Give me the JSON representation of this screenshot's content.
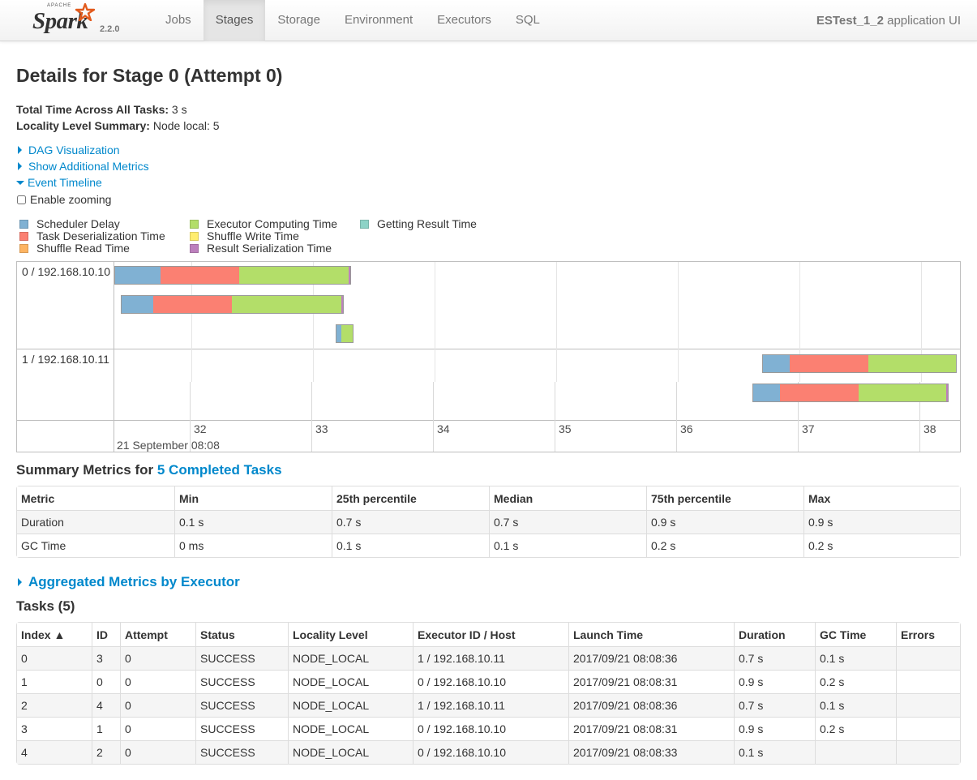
{
  "nav": {
    "logo_apache": "APACHE",
    "logo_text": "Spark",
    "version": "2.2.0",
    "tabs": [
      "Jobs",
      "Stages",
      "Storage",
      "Environment",
      "Executors",
      "SQL"
    ],
    "active_tab": "Stages",
    "app_name": "ESTest_1_2",
    "app_suffix": "application UI"
  },
  "stage": {
    "title": "Details for Stage 0 (Attempt 0)",
    "total_time_label": "Total Time Across All Tasks:",
    "total_time_value": "3 s",
    "locality_label": "Locality Level Summary:",
    "locality_value": "Node local: 5"
  },
  "toggles": {
    "dag": "DAG Visualization",
    "metrics": "Show Additional Metrics",
    "timeline": "Event Timeline",
    "zoom": "Enable zooming"
  },
  "legend": [
    {
      "label": "Scheduler Delay",
      "color": "#80b1d3"
    },
    {
      "label": "Task Deserialization Time",
      "color": "#fb8072"
    },
    {
      "label": "Shuffle Read Time",
      "color": "#fdb462"
    },
    {
      "label": "Executor Computing Time",
      "color": "#b3de69"
    },
    {
      "label": "Shuffle Write Time",
      "color": "#ffed6f"
    },
    {
      "label": "Result Serialization Time",
      "color": "#bc80bd"
    },
    {
      "label": "Getting Result Time",
      "color": "#8dd3c7"
    }
  ],
  "timeline": {
    "groups": [
      "0 / 192.168.10.10",
      "1 / 192.168.10.11"
    ],
    "axis_ticks": [
      "32",
      "33",
      "34",
      "35",
      "36",
      "37",
      "38"
    ],
    "axis_date": "21 September 08:08",
    "tasks": [
      {
        "executor": 0,
        "segments": [
          {
            "kind": 0,
            "s": 0.27
          },
          {
            "kind": 1,
            "s": 0.47
          },
          {
            "kind": 3,
            "s": 0.65
          },
          {
            "kind": 5,
            "s": 0.01
          }
        ]
      },
      {
        "executor": 0,
        "segments": [
          {
            "kind": 0,
            "s": 0.19
          },
          {
            "kind": 1,
            "s": 0.47
          },
          {
            "kind": 3,
            "s": 0.65
          },
          {
            "kind": 5,
            "s": 0.01
          }
        ]
      },
      {
        "executor": 0,
        "segments": [
          {
            "kind": 0,
            "s": 0.03
          },
          {
            "kind": 3,
            "s": 0.07
          }
        ]
      },
      {
        "executor": 1,
        "segments": [
          {
            "kind": 0,
            "s": 0.16
          },
          {
            "kind": 1,
            "s": 0.47
          },
          {
            "kind": 3,
            "s": 0.52
          }
        ]
      },
      {
        "executor": 1,
        "segments": [
          {
            "kind": 0,
            "s": 0.16
          },
          {
            "kind": 1,
            "s": 0.47
          },
          {
            "kind": 3,
            "s": 0.52
          },
          {
            "kind": 5,
            "s": 0.01
          }
        ]
      }
    ]
  },
  "summary": {
    "title_prefix": "Summary Metrics for",
    "title_link": "5 Completed Tasks",
    "headers": [
      "Metric",
      "Min",
      "25th percentile",
      "Median",
      "75th percentile",
      "Max"
    ],
    "rows": [
      [
        "Duration",
        "0.1 s",
        "0.7 s",
        "0.7 s",
        "0.9 s",
        "0.9 s"
      ],
      [
        "GC Time",
        "0 ms",
        "0.1 s",
        "0.1 s",
        "0.2 s",
        "0.2 s"
      ]
    ]
  },
  "aggregated": {
    "label": "Aggregated Metrics by Executor"
  },
  "tasks": {
    "title": "Tasks (5)",
    "headers": [
      "Index ▲",
      "ID",
      "Attempt",
      "Status",
      "Locality Level",
      "Executor ID / Host",
      "Launch Time",
      "Duration",
      "GC Time",
      "Errors"
    ],
    "rows": [
      [
        "0",
        "3",
        "0",
        "SUCCESS",
        "NODE_LOCAL",
        "1 / 192.168.10.11",
        "2017/09/21 08:08:36",
        "0.7 s",
        "0.1 s",
        ""
      ],
      [
        "1",
        "0",
        "0",
        "SUCCESS",
        "NODE_LOCAL",
        "0 / 192.168.10.10",
        "2017/09/21 08:08:31",
        "0.9 s",
        "0.2 s",
        ""
      ],
      [
        "2",
        "4",
        "0",
        "SUCCESS",
        "NODE_LOCAL",
        "1 / 192.168.10.11",
        "2017/09/21 08:08:36",
        "0.7 s",
        "0.1 s",
        ""
      ],
      [
        "3",
        "1",
        "0",
        "SUCCESS",
        "NODE_LOCAL",
        "0 / 192.168.10.10",
        "2017/09/21 08:08:31",
        "0.9 s",
        "0.2 s",
        ""
      ],
      [
        "4",
        "2",
        "0",
        "SUCCESS",
        "NODE_LOCAL",
        "0 / 192.168.10.10",
        "2017/09/21 08:08:33",
        "0.1 s",
        "",
        ""
      ]
    ]
  }
}
